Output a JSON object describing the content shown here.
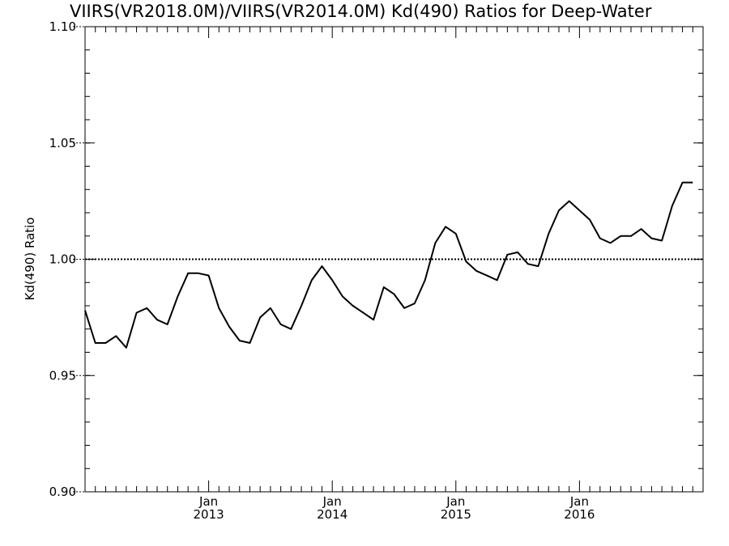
{
  "chart_data": {
    "type": "line",
    "title": "VIIRS(VR2018.0M)/VIIRS(VR2014.0M)  Kd(490) Ratios for Deep-Water",
    "xlabel": "",
    "ylabel": "Kd(490) Ratio",
    "xlim": [
      "2012-01",
      "2017-01"
    ],
    "ylim": [
      0.9,
      1.1
    ],
    "y_ticks": [
      {
        "value": 0.9,
        "label": "0.90"
      },
      {
        "value": 0.95,
        "label": "0.95"
      },
      {
        "value": 1.0,
        "label": "1.00"
      },
      {
        "value": 1.05,
        "label": "1.05"
      },
      {
        "value": 1.1,
        "label": "1.10"
      }
    ],
    "x_ticks": [
      {
        "value": "2013-01",
        "label_top": "Jan",
        "label_bottom": "2013"
      },
      {
        "value": "2014-01",
        "label_top": "Jan",
        "label_bottom": "2014"
      },
      {
        "value": "2015-01",
        "label_top": "Jan",
        "label_bottom": "2015"
      },
      {
        "value": "2016-01",
        "label_top": "Jan",
        "label_bottom": "2016"
      }
    ],
    "reference_line": {
      "y": 1.0,
      "style": "dotted"
    },
    "grid": false,
    "series": [
      {
        "x": [
          "2012-01",
          "2012-02",
          "2012-03",
          "2012-04",
          "2012-05",
          "2012-06",
          "2012-07",
          "2012-08",
          "2012-09",
          "2012-10",
          "2012-11",
          "2012-12",
          "2013-01",
          "2013-02",
          "2013-03",
          "2013-04",
          "2013-05",
          "2013-06",
          "2013-07",
          "2013-08",
          "2013-09",
          "2013-10",
          "2013-11",
          "2013-12",
          "2014-01",
          "2014-02",
          "2014-03",
          "2014-04",
          "2014-05",
          "2014-06",
          "2014-07",
          "2014-08",
          "2014-09",
          "2014-10",
          "2014-11",
          "2014-12",
          "2015-01",
          "2015-02",
          "2015-03",
          "2015-04",
          "2015-05",
          "2015-06",
          "2015-07",
          "2015-08",
          "2015-09",
          "2015-10",
          "2015-11",
          "2015-12",
          "2016-01",
          "2016-02",
          "2016-03",
          "2016-04",
          "2016-05",
          "2016-06",
          "2016-07",
          "2016-08",
          "2016-09",
          "2016-10",
          "2016-11",
          "2016-12"
        ],
        "values": [
          0.978,
          0.964,
          0.964,
          0.967,
          0.962,
          0.977,
          0.979,
          0.974,
          0.972,
          0.984,
          0.994,
          0.994,
          0.993,
          0.979,
          0.971,
          0.965,
          0.964,
          0.975,
          0.979,
          0.972,
          0.97,
          0.98,
          0.991,
          0.997,
          0.991,
          0.984,
          0.98,
          0.977,
          0.974,
          0.988,
          0.985,
          0.979,
          0.981,
          0.991,
          1.007,
          1.014,
          1.011,
          0.999,
          0.995,
          0.993,
          0.991,
          1.002,
          1.003,
          0.998,
          0.997,
          1.011,
          1.021,
          1.025,
          1.021,
          1.017,
          1.009,
          1.007,
          1.01,
          1.01,
          1.013,
          1.009,
          1.008,
          1.023,
          1.033,
          1.033
        ]
      }
    ]
  }
}
